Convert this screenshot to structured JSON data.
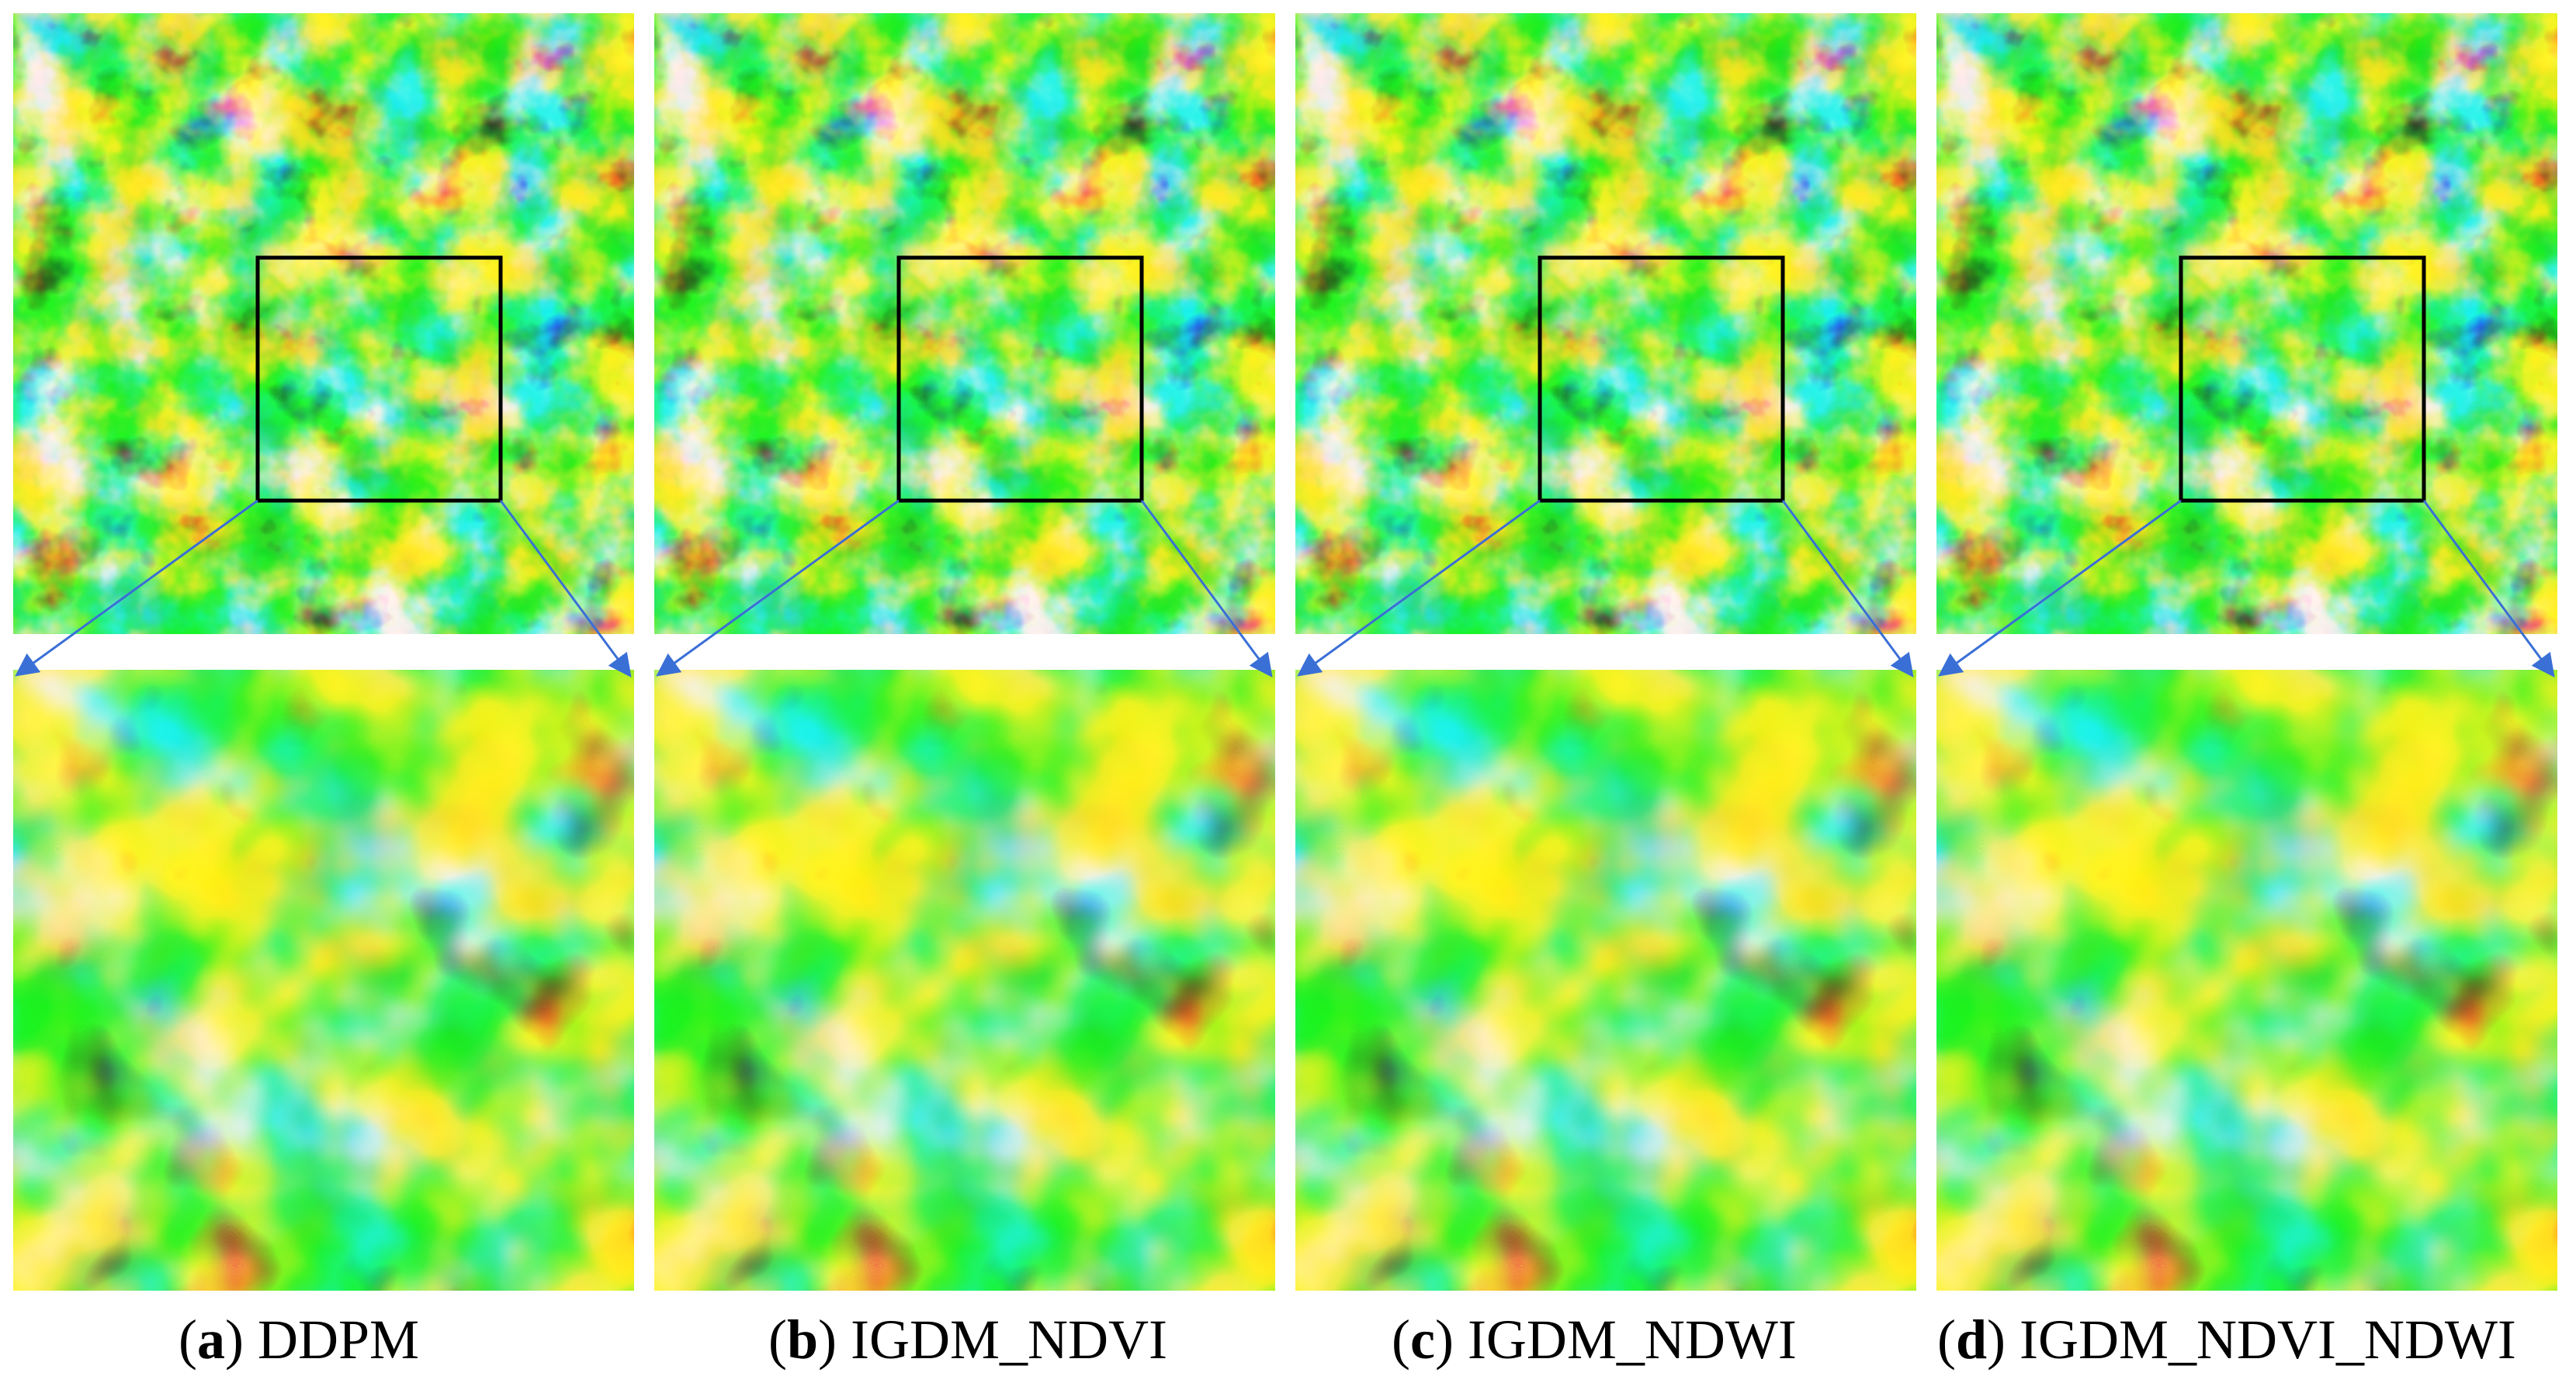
{
  "panels": [
    {
      "letter": "a",
      "name": "DDPM"
    },
    {
      "letter": "b",
      "name": "IGDM_NDVI"
    },
    {
      "letter": "c",
      "name": "IGDM_NDWI"
    },
    {
      "letter": "d",
      "name": "IGDM_NDVI_NDWI"
    }
  ],
  "colors": {
    "colormap": [
      "#0b2fb5",
      "#1a78f0",
      "#18d8e8",
      "#2be896",
      "#8ef055",
      "#e6f52a",
      "#ffb51e",
      "#ff5a12",
      "#c81010"
    ],
    "roi_box": "#000000",
    "connector": "#3a6fd6"
  }
}
